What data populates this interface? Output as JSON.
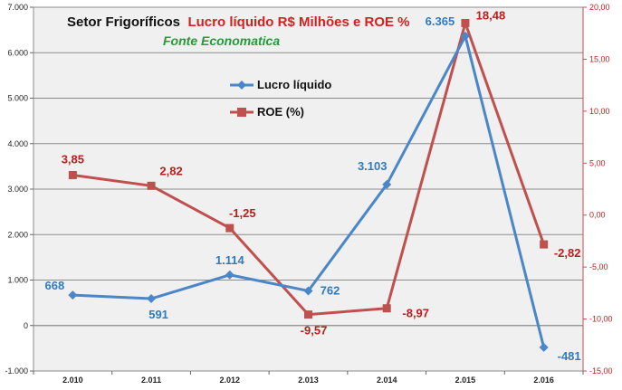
{
  "chart_data": {
    "type": "line",
    "title_part1": "Setor Frigoríficos",
    "title_part2": "Lucro líquido R$ Milhões e ROE %",
    "subtitle": "Fonte Economatica",
    "categories": [
      "2.010",
      "2.011",
      "2.012",
      "2.013",
      "2.014",
      "2.015",
      "2.016"
    ],
    "left_axis": {
      "ylim": [
        -1000,
        7000
      ],
      "ticks": [
        -1000,
        0,
        1000,
        2000,
        3000,
        4000,
        5000,
        6000,
        7000
      ],
      "tick_labels": [
        "-1.000",
        "0",
        "1.000",
        "2.000",
        "3.000",
        "4.000",
        "5.000",
        "6.000",
        "7.000"
      ]
    },
    "right_axis": {
      "ylim": [
        -15,
        20
      ],
      "ticks": [
        -15,
        -10,
        -5,
        0,
        5,
        10,
        15,
        20
      ],
      "tick_labels": [
        "-15,00",
        "-10,00",
        "-5,00",
        "0,00",
        "5,00",
        "10,00",
        "15,00",
        "20,00"
      ]
    },
    "grid": true,
    "legend_position": "upper-center",
    "series": [
      {
        "name": "Lucro líquido",
        "axis": "left",
        "marker": "diamond",
        "color": "#4a86c8",
        "values": [
          668,
          591,
          1114,
          762,
          3103,
          6365,
          -481
        ],
        "labels": [
          "668",
          "591",
          "1.114",
          "762",
          "3.103",
          "6.365",
          "-481"
        ]
      },
      {
        "name": "ROE  (%)",
        "axis": "right",
        "marker": "square",
        "color": "#c0504d",
        "values": [
          3.85,
          2.82,
          -1.25,
          -9.57,
          -8.97,
          18.48,
          -2.82
        ],
        "labels": [
          "3,85",
          "2,82",
          "-1,25",
          "-9,57",
          "-8,97",
          "18,48",
          "-2,82"
        ]
      }
    ]
  }
}
